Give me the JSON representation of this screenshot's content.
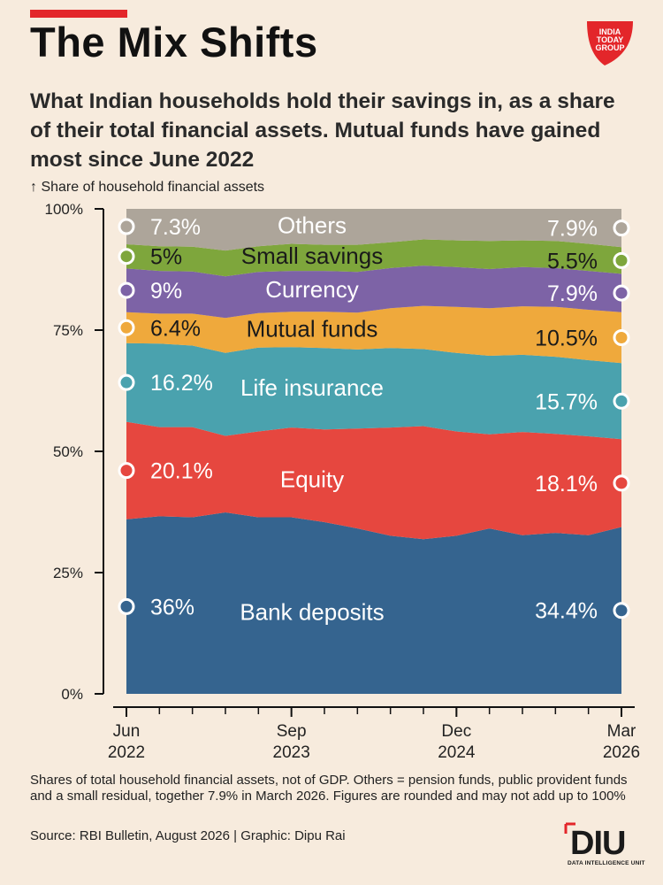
{
  "title": "The Mix Shifts",
  "subtitle": "What Indian households hold their savings in, as a share of their total financial assets. Mutual funds have gained most since June 2022",
  "footnote": "Shares of total household financial assets, not of GDP. Others = pension funds, public provident funds and a small residual, together 7.9% in March 2026. Figures are rounded and may not add up to 100%",
  "source": "Source: RBI Bulletin, August 2026 | Graphic: Dipu Rai",
  "logo_text": "INDIA TODAY GROUP",
  "diu_logo": "DIU",
  "diu_tagline": "DATA INTELLIGENCE UNIT",
  "chart_data": {
    "type": "area",
    "stacked": true,
    "ylabel": "↑ Share of household financial assets",
    "ylim": [
      0,
      100
    ],
    "yticks": [
      "0%",
      "25%",
      "50%",
      "75%",
      "100%"
    ],
    "xticks": [
      {
        "top": "Jun",
        "bottom": "2022",
        "index": 0
      },
      {
        "top": "Sep",
        "bottom": "2023",
        "index": 5
      },
      {
        "top": "Dec",
        "bottom": "2024",
        "index": 10
      },
      {
        "top": "Mar",
        "bottom": "2026",
        "index": 15
      }
    ],
    "n_points": 16,
    "series": [
      {
        "name": "Bank deposits",
        "color": "#35648f",
        "start_label": "36%",
        "end_label": "34.4%",
        "values": [
          36,
          36.6,
          36.4,
          37.4,
          36.4,
          36.4,
          35.4,
          34.1,
          32.6,
          31.9,
          32.6,
          34.1,
          32.7,
          33.2,
          32.7,
          34.4
        ]
      },
      {
        "name": "Equity",
        "color": "#e6473f",
        "start_label": "20.1%",
        "end_label": "18.1%",
        "values": [
          20.1,
          18.4,
          18.6,
          15.8,
          17.7,
          18.5,
          19.1,
          20.6,
          22.3,
          23.3,
          21.5,
          19.4,
          21.3,
          20.4,
          20.4,
          18.1
        ]
      },
      {
        "name": "Life insurance",
        "color": "#4aa2ae",
        "start_label": "16.2%",
        "end_label": "15.7%",
        "values": [
          16.2,
          17.2,
          16.8,
          17.1,
          17.3,
          16.6,
          16.8,
          16.3,
          16.4,
          15.9,
          16.2,
          16.2,
          15.9,
          15.9,
          15.7,
          15.7
        ]
      },
      {
        "name": "Mutual funds",
        "color": "#efa93c",
        "start_label": "6.4%",
        "end_label": "10.5%",
        "values": [
          6.4,
          6.2,
          6.6,
          7.2,
          7.1,
          7.3,
          7.5,
          7.6,
          8.2,
          8.9,
          9.5,
          9.8,
          10.0,
          10.3,
          10.4,
          10.5
        ]
      },
      {
        "name": "Currency",
        "color": "#7d63a6",
        "start_label": "9%",
        "end_label": "7.9%",
        "values": [
          9,
          8.8,
          8.7,
          8.6,
          8.5,
          8.4,
          8.4,
          8.4,
          8.3,
          8.3,
          8.2,
          8.1,
          8.1,
          8.0,
          8.0,
          7.9
        ]
      },
      {
        "name": "Small savings",
        "color": "#7ea63c",
        "start_label": "5%",
        "end_label": "5.5%",
        "values": [
          5,
          5.1,
          5.1,
          5.3,
          5.3,
          5.6,
          5.4,
          5.6,
          5.3,
          5.4,
          5.5,
          5.8,
          5.5,
          5.6,
          5.6,
          5.5
        ]
      },
      {
        "name": "Others",
        "color": "#ada59a",
        "start_label": "7.3%",
        "end_label": "7.9%",
        "values": [
          7.3,
          7.7,
          7.8,
          8.6,
          7.7,
          7.2,
          7.4,
          7.4,
          6.9,
          6.3,
          6.5,
          6.6,
          6.5,
          6.6,
          7.2,
          7.9
        ]
      }
    ]
  }
}
